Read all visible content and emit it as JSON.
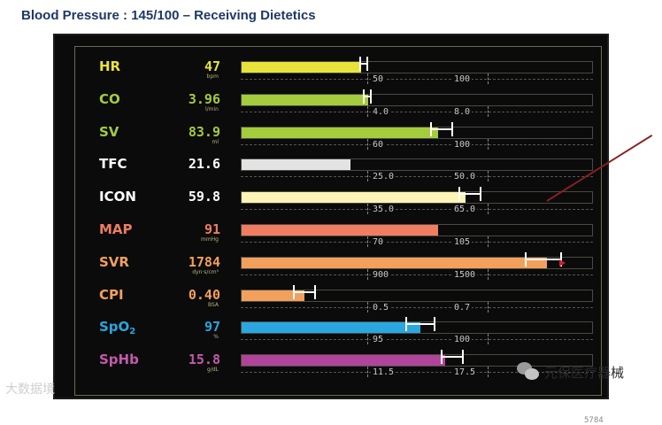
{
  "title": "Blood Pressure : 145/100 – Receiving Dietetics",
  "watermarks": {
    "left": "大数据境",
    "right": "元保医疗器械",
    "right_icon": "wechat-icon",
    "footer_number": "5784"
  },
  "rows": [
    {
      "key": "hr",
      "label": "HR",
      "value": "47",
      "unit": "bpm",
      "color": "#e8e33a",
      "fill_fraction": 0.34,
      "scale": [
        "50",
        "100"
      ],
      "error_bar": [
        0.34,
        0.36
      ]
    },
    {
      "key": "co",
      "label": "CO",
      "value": "3.96",
      "unit": "l/min",
      "color": "#a4cc3c",
      "fill_fraction": 0.36,
      "scale": [
        "4.0",
        "8.0"
      ],
      "error_bar": [
        0.35,
        0.37
      ]
    },
    {
      "key": "sv",
      "label": "SV",
      "value": "83.9",
      "unit": "ml",
      "color": "#a4cc3c",
      "fill_fraction": 0.56,
      "scale": [
        "60",
        "100"
      ],
      "error_bar": [
        0.54,
        0.6
      ]
    },
    {
      "key": "tfc",
      "label": "TFC",
      "value": "21.6",
      "unit": "",
      "color": "#e3e3e3",
      "fill_fraction": 0.31,
      "scale": [
        "25.0",
        "50.0"
      ],
      "error_bar": null
    },
    {
      "key": "icon",
      "label": "ICON",
      "value": "59.8",
      "unit": "",
      "color": "#fbf4b6",
      "fill_fraction": 0.64,
      "scale": [
        "35.0",
        "65.0"
      ],
      "error_bar": [
        0.62,
        0.68
      ]
    },
    {
      "key": "map",
      "label": "MAP",
      "value": "91",
      "unit": "mmHg",
      "color": "#f07d62",
      "fill_fraction": 0.56,
      "scale": [
        "70",
        "105"
      ],
      "error_bar": null
    },
    {
      "key": "svr",
      "label": "SVR",
      "value": "1784",
      "unit": "dyn·s/cm⁵",
      "color": "#f3a05d",
      "fill_fraction": 0.87,
      "scale": [
        "900",
        "1500"
      ],
      "error_bar": [
        0.81,
        0.91
      ],
      "marker": 0.91
    },
    {
      "key": "cpi",
      "label": "CPI",
      "value": "0.40",
      "unit": "BSA",
      "color": "#f3a05d",
      "fill_fraction": 0.18,
      "scale": [
        "0.5",
        "0.7"
      ],
      "error_bar": [
        0.15,
        0.21
      ]
    },
    {
      "key": "spo2",
      "label": "SpO",
      "label_sub": "2",
      "value": "97",
      "unit": "%",
      "color": "#2aa6e0",
      "fill_fraction": 0.51,
      "scale": [
        "95",
        "100"
      ],
      "error_bar": [
        0.47,
        0.55
      ]
    },
    {
      "key": "sphb",
      "label": "SpHb",
      "value": "15.8",
      "unit": "g/dL",
      "color": "#b0449a",
      "fill_fraction": 0.58,
      "scale": [
        "11.5",
        "17.5"
      ],
      "error_bar": [
        0.57,
        0.63
      ]
    }
  ],
  "label_colors": {
    "hr": "#e8e33a",
    "co": "#a4cc3c",
    "sv": "#a4cc3c",
    "tfc": "#ffffff",
    "icon": "#ffffff",
    "map": "#f07d62",
    "svr": "#f3a05d",
    "cpi": "#f3a05d",
    "spo2": "#2aa6e0",
    "sphb": "#c45aae"
  }
}
